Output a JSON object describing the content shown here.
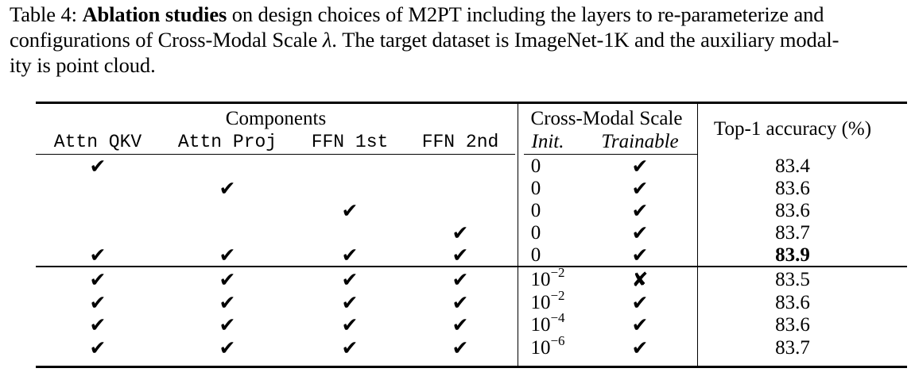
{
  "caption": {
    "label": "Table 4:",
    "bold": "Ablation studies",
    "line1_rest": "on design choices of M2PT including the layers to re-parameterize and",
    "line2_pre": "configurations of Cross-Modal Scale",
    "lambda": "λ",
    "line2_post": ". The target dataset is ImageNet-1K and the auxiliary modal-",
    "line3": "ity is point cloud."
  },
  "header": {
    "components": "Components",
    "cross_modal_scale": "Cross-Modal Scale",
    "top1": "Top-1 accuracy (%)",
    "columns": [
      "Attn QKV",
      "Attn Proj",
      "FFN 1st",
      "FFN 2nd"
    ],
    "init": "Init.",
    "trainable": "Trainable"
  },
  "symbols": {
    "check": "✔",
    "cross": "✘"
  },
  "rows": [
    {
      "qkv": "✔",
      "proj": "",
      "ffn1": "",
      "ffn2": "",
      "init_base": "0",
      "init_exp": "",
      "trainable": "✔",
      "acc": "83.4",
      "bold": false
    },
    {
      "qkv": "",
      "proj": "✔",
      "ffn1": "",
      "ffn2": "",
      "init_base": "0",
      "init_exp": "",
      "trainable": "✔",
      "acc": "83.6",
      "bold": false
    },
    {
      "qkv": "",
      "proj": "",
      "ffn1": "✔",
      "ffn2": "",
      "init_base": "0",
      "init_exp": "",
      "trainable": "✔",
      "acc": "83.6",
      "bold": false
    },
    {
      "qkv": "",
      "proj": "",
      "ffn1": "",
      "ffn2": "✔",
      "init_base": "0",
      "init_exp": "",
      "trainable": "✔",
      "acc": "83.7",
      "bold": false
    },
    {
      "qkv": "✔",
      "proj": "✔",
      "ffn1": "✔",
      "ffn2": "✔",
      "init_base": "0",
      "init_exp": "",
      "trainable": "✔",
      "acc": "83.9",
      "bold": true
    },
    {
      "qkv": "✔",
      "proj": "✔",
      "ffn1": "✔",
      "ffn2": "✔",
      "init_base": "10",
      "init_exp": "−2",
      "trainable": "✘",
      "acc": "83.5",
      "bold": false
    },
    {
      "qkv": "✔",
      "proj": "✔",
      "ffn1": "✔",
      "ffn2": "✔",
      "init_base": "10",
      "init_exp": "−2",
      "trainable": "✔",
      "acc": "83.6",
      "bold": false
    },
    {
      "qkv": "✔",
      "proj": "✔",
      "ffn1": "✔",
      "ffn2": "✔",
      "init_base": "10",
      "init_exp": "−4",
      "trainable": "✔",
      "acc": "83.6",
      "bold": false
    },
    {
      "qkv": "✔",
      "proj": "✔",
      "ffn1": "✔",
      "ffn2": "✔",
      "init_base": "10",
      "init_exp": "−6",
      "trainable": "✔",
      "acc": "83.7",
      "bold": false
    }
  ]
}
